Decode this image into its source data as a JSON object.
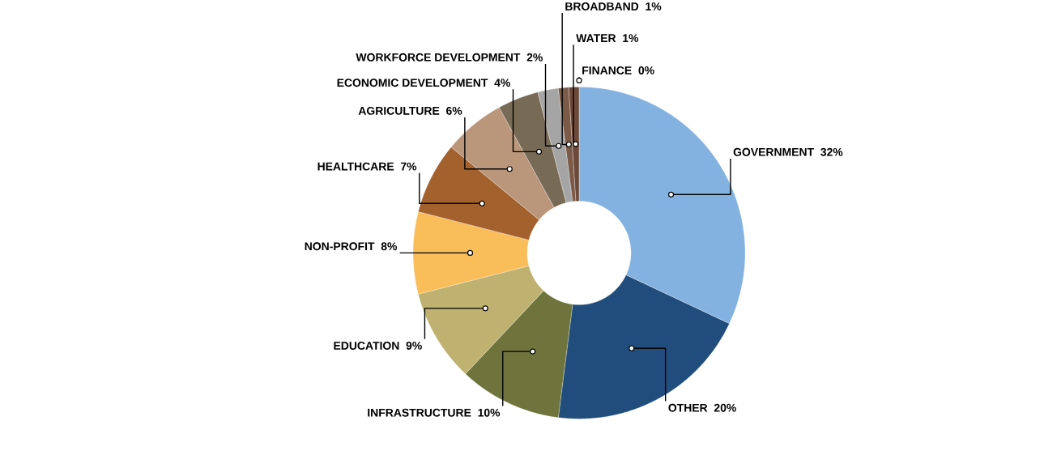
{
  "chart_data": {
    "type": "donut",
    "categories": [
      "GOVERNMENT",
      "OTHER",
      "INFRASTRUCTURE",
      "EDUCATION",
      "NON-PROFIT",
      "HEALTHCARE",
      "AGRICULTURE",
      "ECONOMIC DEVELOPMENT",
      "WORKFORCE DEVELOPMENT",
      "BROADBAND",
      "WATER",
      "FINANCE"
    ],
    "values": [
      32,
      20,
      10,
      9,
      8,
      7,
      6,
      4,
      2,
      1,
      1,
      0
    ],
    "value_labels": [
      "32%",
      "20%",
      "10%",
      "9%",
      "8%",
      "7%",
      "6%",
      "4%",
      "2%",
      "1%",
      "1%",
      "0%"
    ],
    "colors": [
      "#84b2e0",
      "#214d7c",
      "#6e743c",
      "#bfb16f",
      "#f9bd5a",
      "#a3612e",
      "#ba967b",
      "#786b55",
      "#a5a5a5",
      "#7b5a47",
      "#6e4a3a",
      "#e0e0e6"
    ]
  }
}
